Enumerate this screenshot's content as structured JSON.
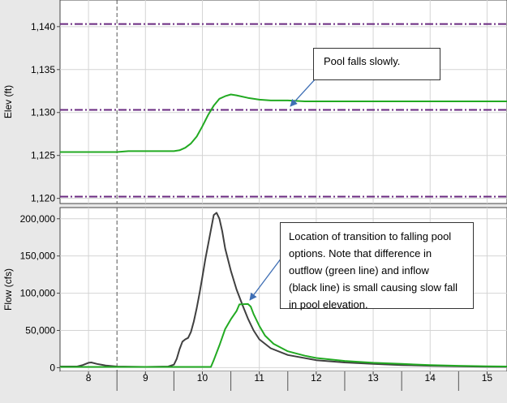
{
  "chart_data": [
    {
      "type": "line",
      "title": "",
      "ylabel": "Elev (ft)",
      "xlim": [
        7.5,
        15.35
      ],
      "ylim": [
        1119.4,
        1143.1
      ],
      "yticks": [
        1120,
        1125,
        1130,
        1135,
        1140
      ],
      "ytick_labels": [
        "1,120",
        "1,125",
        "1,130",
        "1,135",
        "1,140"
      ],
      "grid": true,
      "reference_lines": [
        1140.3,
        1130.3,
        1120.2
      ],
      "marker_x": 8.5,
      "series": [
        {
          "color": "#22aa22",
          "points": [
            [
              7.5,
              1125.4
            ],
            [
              8.5,
              1125.4
            ],
            [
              8.7,
              1125.5
            ],
            [
              9.5,
              1125.5
            ],
            [
              9.6,
              1125.6
            ],
            [
              9.7,
              1125.9
            ],
            [
              9.8,
              1126.4
            ],
            [
              9.9,
              1127.2
            ],
            [
              10.0,
              1128.4
            ],
            [
              10.1,
              1129.7
            ],
            [
              10.2,
              1130.8
            ],
            [
              10.3,
              1131.6
            ],
            [
              10.4,
              1131.9
            ],
            [
              10.5,
              1132.1
            ],
            [
              10.6,
              1132.0
            ],
            [
              10.8,
              1131.7
            ],
            [
              11.0,
              1131.5
            ],
            [
              11.2,
              1131.4
            ],
            [
              11.5,
              1131.4
            ],
            [
              11.8,
              1131.3
            ],
            [
              15.35,
              1131.3
            ]
          ]
        }
      ],
      "annotation": "Pool falls slowly."
    },
    {
      "type": "line",
      "title": "",
      "ylabel": "Flow (cfs)",
      "xlabel": "",
      "xlim": [
        7.5,
        15.35
      ],
      "ylim": [
        -5000,
        215000
      ],
      "yticks": [
        0,
        50000,
        100000,
        150000,
        200000
      ],
      "ytick_labels": [
        "0",
        "50,000",
        "100,000",
        "150,000",
        "200,000"
      ],
      "xticks": [
        8,
        9,
        10,
        11,
        12,
        13,
        14,
        15
      ],
      "xtick_labels": [
        "8",
        "9",
        "10",
        "11",
        "12",
        "13",
        "14",
        "15"
      ],
      "grid": true,
      "marker_x": 8.5,
      "series": [
        {
          "color": "#404040",
          "points": [
            [
              7.5,
              1500
            ],
            [
              7.8,
              1500
            ],
            [
              7.9,
              3500
            ],
            [
              8.0,
              6500
            ],
            [
              8.05,
              7000
            ],
            [
              8.15,
              5000
            ],
            [
              8.3,
              3000
            ],
            [
              8.5,
              1500
            ],
            [
              9.0,
              1000
            ],
            [
              9.4,
              1500
            ],
            [
              9.5,
              4000
            ],
            [
              9.55,
              12000
            ],
            [
              9.6,
              25000
            ],
            [
              9.65,
              35000
            ],
            [
              9.7,
              38000
            ],
            [
              9.75,
              40000
            ],
            [
              9.8,
              48000
            ],
            [
              9.85,
              62000
            ],
            [
              9.9,
              80000
            ],
            [
              9.95,
              100000
            ],
            [
              10.0,
              122000
            ],
            [
              10.05,
              145000
            ],
            [
              10.1,
              165000
            ],
            [
              10.15,
              185000
            ],
            [
              10.2,
              205000
            ],
            [
              10.25,
              208000
            ],
            [
              10.3,
              200000
            ],
            [
              10.35,
              183000
            ],
            [
              10.4,
              160000
            ],
            [
              10.5,
              130000
            ],
            [
              10.6,
              105000
            ],
            [
              10.7,
              85000
            ],
            [
              10.8,
              66000
            ],
            [
              10.9,
              50000
            ],
            [
              11.0,
              38000
            ],
            [
              11.2,
              26000
            ],
            [
              11.5,
              17000
            ],
            [
              12.0,
              10000
            ],
            [
              12.5,
              7000
            ],
            [
              13.0,
              5000
            ],
            [
              13.5,
              3500
            ],
            [
              14.0,
              2500
            ],
            [
              14.5,
              1800
            ],
            [
              15.0,
              1300
            ],
            [
              15.35,
              1100
            ]
          ]
        },
        {
          "color": "#22aa22",
          "points": [
            [
              7.5,
              1000
            ],
            [
              10.15,
              1000
            ],
            [
              10.2,
              10000
            ],
            [
              10.3,
              30000
            ],
            [
              10.4,
              52000
            ],
            [
              10.5,
              65000
            ],
            [
              10.6,
              76000
            ],
            [
              10.65,
              85000
            ],
            [
              10.8,
              85500
            ],
            [
              10.85,
              82000
            ],
            [
              10.9,
              72000
            ],
            [
              11.0,
              56000
            ],
            [
              11.1,
              43000
            ],
            [
              11.25,
              32000
            ],
            [
              11.5,
              22000
            ],
            [
              11.8,
              16000
            ],
            [
              12.0,
              13000
            ],
            [
              12.5,
              9000
            ],
            [
              13.0,
              6500
            ],
            [
              13.5,
              5000
            ],
            [
              14.0,
              3500
            ],
            [
              14.5,
              2500
            ],
            [
              15.0,
              1800
            ],
            [
              15.35,
              1500
            ]
          ]
        }
      ],
      "annotation": "Location of transition to falling pool options.  Note that difference in outflow (green line) and inflow (black line) is small causing slow fall in pool elevation."
    }
  ],
  "callouts": {
    "top": "Pool falls slowly.",
    "bottom_lines": [
      "Location of transition to falling pool",
      "options.  Note that difference in",
      "outflow (green line) and inflow",
      "(black line) is small causing slow fall",
      "in pool elevation."
    ]
  },
  "colors": {
    "reference_line": "#6a2a80",
    "marker_line": "#555555",
    "arrow": "#3f6fb5",
    "grid": "#d4d4d4"
  }
}
